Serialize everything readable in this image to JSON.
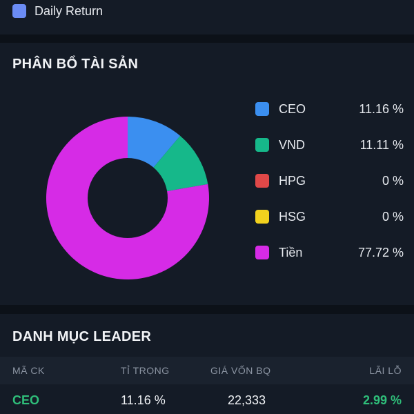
{
  "top_legend": {
    "label": "Daily Return",
    "color": "#6b8cf5"
  },
  "allocation": {
    "title": "PHÂN BỔ TÀI SẢN",
    "items": [
      {
        "name": "CEO",
        "percent": "11.16 %",
        "value": 11.16,
        "color": "#3b8ff0"
      },
      {
        "name": "VND",
        "percent": "11.11 %",
        "value": 11.11,
        "color": "#16b88a"
      },
      {
        "name": "HPG",
        "percent": "0 %",
        "value": 0,
        "color": "#e04848"
      },
      {
        "name": "HSG",
        "percent": "0 %",
        "value": 0,
        "color": "#f2d21e"
      },
      {
        "name": "Tiền",
        "percent": "77.72 %",
        "value": 77.72,
        "color": "#d62be6"
      }
    ]
  },
  "chart_data": {
    "type": "pie",
    "categories": [
      "CEO",
      "VND",
      "HPG",
      "HSG",
      "Tiền"
    ],
    "values": [
      11.16,
      11.11,
      0,
      0,
      77.72
    ],
    "title": "PHÂN BỔ TÀI SẢN",
    "legend": "right"
  },
  "leader": {
    "title": "DANH MỤC LEADER",
    "columns": [
      "MÃ CK",
      "TỈ TRỌNG",
      "GIÁ VỐN BQ",
      "LÃI LỖ"
    ],
    "rows": [
      {
        "ticker": "CEO",
        "weight": "11.16 %",
        "avg_cost": "22,333",
        "pnl": "2.99 %"
      }
    ]
  }
}
